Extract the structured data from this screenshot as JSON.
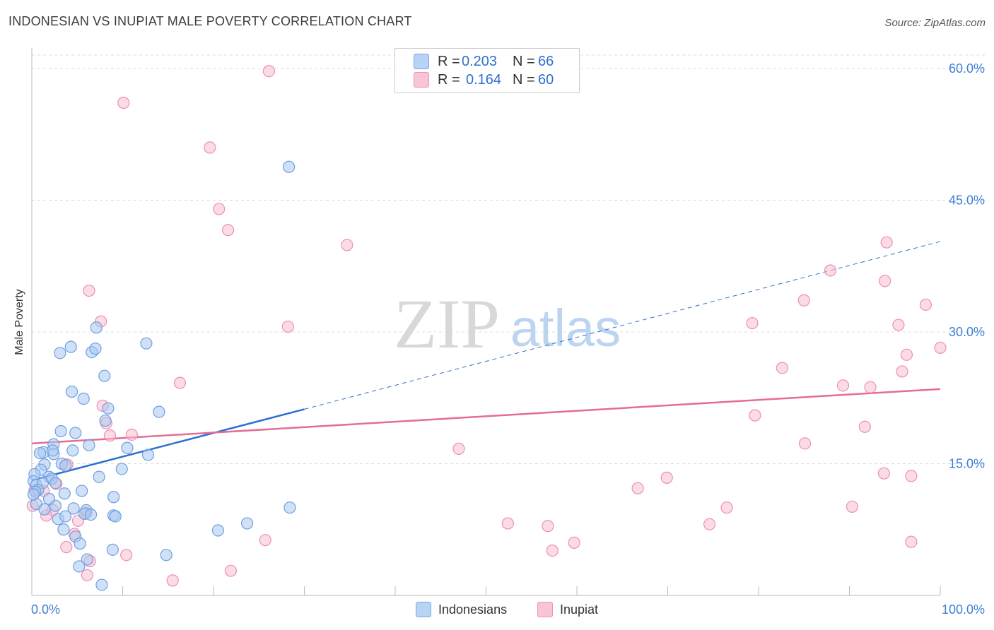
{
  "header": {
    "title": "INDONESIAN VS INUPIAT MALE POVERTY CORRELATION CHART",
    "source": "Source: ZipAtlas.com"
  },
  "legend": {
    "r_label": "R =",
    "n_label": "N =",
    "entries": [
      {
        "r": "0.203",
        "n": "66",
        "fill": "#b8d3f5",
        "stroke": "#7aa7e8"
      },
      {
        "r": "0.164",
        "n": "60",
        "fill": "#f9c5d6",
        "stroke": "#ee94b3"
      }
    ]
  },
  "watermark": {
    "part1": "ZIP",
    "part2": "atlas"
  },
  "colors": {
    "blue_fill": "#a9c8f0",
    "blue_stroke": "#6e9fe3",
    "blue_line": "#2e6fd0",
    "pink_fill": "#f8bdd0",
    "pink_stroke": "#ee8fb0",
    "pink_line": "#e46c97",
    "tick_label": "#3f7fd6",
    "grid": "#dddddd"
  },
  "chart_data": {
    "type": "scatter",
    "title": "INDONESIAN VS INUPIAT MALE POVERTY CORRELATION CHART",
    "xlabel": "",
    "ylabel": "Male Poverty",
    "xlim": [
      0,
      100
    ],
    "ylim": [
      0,
      60
    ],
    "x_tick_labels": [
      "0.0%",
      "100.0%"
    ],
    "y_ticks": [
      15,
      30,
      45,
      60
    ],
    "y_tick_labels": [
      "15.0%",
      "30.0%",
      "45.0%",
      "60.0%"
    ],
    "grid": "horizontal dashed",
    "legend_position": "top-center",
    "series": [
      {
        "name": "Indonesians",
        "r": 0.203,
        "n": 66,
        "trend": {
          "x0": 0,
          "y0": 13.1,
          "x1": 30,
          "y1": 21.2,
          "dashed_to_x": 100,
          "dashed_to_y": 40.3
        },
        "points": [
          [
            28.3,
            48.8
          ],
          [
            4.3,
            28.3
          ],
          [
            3.1,
            27.6
          ],
          [
            6.6,
            27.7
          ],
          [
            7.0,
            28.1
          ],
          [
            7.1,
            30.5
          ],
          [
            12.6,
            28.7
          ],
          [
            8.0,
            25.0
          ],
          [
            4.4,
            23.2
          ],
          [
            5.7,
            22.4
          ],
          [
            8.4,
            21.3
          ],
          [
            14.0,
            20.9
          ],
          [
            8.1,
            19.9
          ],
          [
            3.2,
            18.7
          ],
          [
            4.8,
            18.5
          ],
          [
            6.3,
            17.1
          ],
          [
            2.4,
            17.2
          ],
          [
            1.3,
            16.3
          ],
          [
            0.9,
            16.2
          ],
          [
            2.4,
            16.1
          ],
          [
            2.3,
            16.5
          ],
          [
            4.5,
            16.5
          ],
          [
            10.5,
            16.8
          ],
          [
            12.8,
            16.0
          ],
          [
            3.3,
            15.0
          ],
          [
            3.7,
            14.8
          ],
          [
            1.4,
            14.9
          ],
          [
            1.0,
            14.3
          ],
          [
            9.9,
            14.4
          ],
          [
            0.3,
            13.8
          ],
          [
            1.9,
            13.5
          ],
          [
            2.2,
            13.3
          ],
          [
            7.4,
            13.5
          ],
          [
            0.2,
            13.0
          ],
          [
            0.5,
            12.6
          ],
          [
            1.2,
            12.8
          ],
          [
            2.6,
            12.8
          ],
          [
            0.7,
            12.0
          ],
          [
            0.4,
            11.8
          ],
          [
            3.6,
            11.6
          ],
          [
            5.5,
            11.9
          ],
          [
            9.0,
            11.2
          ],
          [
            0.5,
            10.4
          ],
          [
            2.6,
            10.2
          ],
          [
            4.6,
            9.9
          ],
          [
            6.0,
            9.7
          ],
          [
            1.4,
            9.8
          ],
          [
            5.8,
            9.3
          ],
          [
            6.5,
            9.2
          ],
          [
            9.0,
            9.1
          ],
          [
            9.2,
            9.0
          ],
          [
            28.4,
            10.0
          ],
          [
            2.9,
            8.7
          ],
          [
            3.7,
            9.0
          ],
          [
            3.5,
            7.5
          ],
          [
            4.8,
            6.7
          ],
          [
            20.5,
            7.4
          ],
          [
            23.7,
            8.2
          ],
          [
            5.3,
            5.9
          ],
          [
            8.9,
            5.2
          ],
          [
            14.8,
            4.6
          ],
          [
            6.1,
            4.1
          ],
          [
            5.2,
            3.3
          ],
          [
            7.7,
            1.2
          ],
          [
            1.9,
            11.0
          ],
          [
            0.2,
            11.5
          ]
        ]
      },
      {
        "name": "Inupiat",
        "r": 0.164,
        "n": 60,
        "trend": {
          "x0": 0,
          "y0": 17.3,
          "x1": 100,
          "y1": 23.5
        },
        "points": [
          [
            26.1,
            59.7
          ],
          [
            10.1,
            56.1
          ],
          [
            19.6,
            51.0
          ],
          [
            20.6,
            44.0
          ],
          [
            21.6,
            41.6
          ],
          [
            34.7,
            39.9
          ],
          [
            94.1,
            40.2
          ],
          [
            87.9,
            37.0
          ],
          [
            93.9,
            35.8
          ],
          [
            6.3,
            34.7
          ],
          [
            85.0,
            33.6
          ],
          [
            98.4,
            33.1
          ],
          [
            7.6,
            31.2
          ],
          [
            28.2,
            30.6
          ],
          [
            79.3,
            31.0
          ],
          [
            95.4,
            30.8
          ],
          [
            100.0,
            28.2
          ],
          [
            96.3,
            27.4
          ],
          [
            82.6,
            25.9
          ],
          [
            95.8,
            25.5
          ],
          [
            16.3,
            24.2
          ],
          [
            89.3,
            23.9
          ],
          [
            92.3,
            23.7
          ],
          [
            7.8,
            21.6
          ],
          [
            79.6,
            20.5
          ],
          [
            8.2,
            19.6
          ],
          [
            91.7,
            19.2
          ],
          [
            8.6,
            18.2
          ],
          [
            11.0,
            18.3
          ],
          [
            85.1,
            17.3
          ],
          [
            47.0,
            16.7
          ],
          [
            3.9,
            14.9
          ],
          [
            93.8,
            13.9
          ],
          [
            96.8,
            13.6
          ],
          [
            69.9,
            13.4
          ],
          [
            66.7,
            12.2
          ],
          [
            0.3,
            12.0
          ],
          [
            1.3,
            11.9
          ],
          [
            0.1,
            10.2
          ],
          [
            2.7,
            12.7
          ],
          [
            2.3,
            9.7
          ],
          [
            76.5,
            10.0
          ],
          [
            90.3,
            10.1
          ],
          [
            6.0,
            9.4
          ],
          [
            1.6,
            9.1
          ],
          [
            5.1,
            8.5
          ],
          [
            52.4,
            8.2
          ],
          [
            74.6,
            8.1
          ],
          [
            56.8,
            7.9
          ],
          [
            4.7,
            7.0
          ],
          [
            25.7,
            6.3
          ],
          [
            59.7,
            6.0
          ],
          [
            96.8,
            6.1
          ],
          [
            3.8,
            5.5
          ],
          [
            57.3,
            5.1
          ],
          [
            10.4,
            4.6
          ],
          [
            6.4,
            3.9
          ],
          [
            21.9,
            2.8
          ],
          [
            6.1,
            2.3
          ],
          [
            15.5,
            1.7
          ]
        ]
      }
    ]
  }
}
